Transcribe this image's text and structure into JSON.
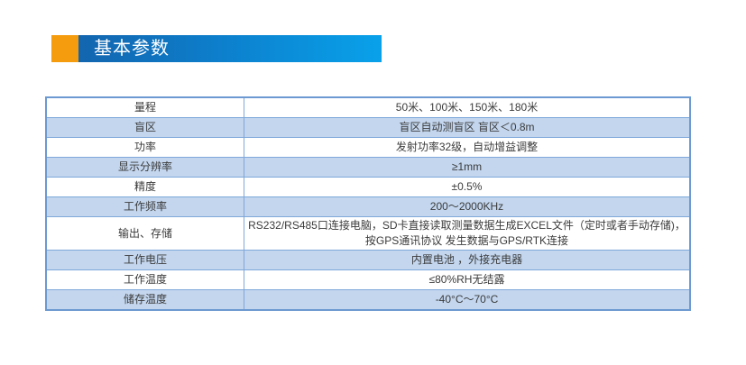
{
  "header": {
    "title": "基本参数"
  },
  "colors": {
    "accent_orange": "#f59b0e",
    "banner_blue_left": "#1365af",
    "banner_blue_right": "#09a1ea",
    "row_alt_blue": "#c3d6ee",
    "table_border": "#7ea8da",
    "text": "#3b3b3b"
  },
  "table": {
    "rows": [
      {
        "label": "量程",
        "value_lines": [
          "50米、100米、150米、180米"
        ]
      },
      {
        "label": "盲区",
        "value_lines": [
          "盲区自动测盲区 盲区＜0.8m"
        ]
      },
      {
        "label": "功率",
        "value_lines": [
          "发射功率32级，自动增益调整"
        ]
      },
      {
        "label": "显示分辨率",
        "value_lines": [
          "≥1mm"
        ]
      },
      {
        "label": "精度",
        "value_lines": [
          "±0.5%"
        ]
      },
      {
        "label": "工作频率",
        "value_lines": [
          "200～2000KHz"
        ]
      },
      {
        "label": "输出、存储",
        "value_lines": [
          "RS232/RS485口连接电脑，SD卡直接读取测量数据生成EXCEL文件（定时或者手动存储)，",
          "按GPS通讯协议 发生数据与GPS/RTK连接"
        ]
      },
      {
        "label": "工作电压",
        "value_lines": [
          "内置电池 ，外接充电器"
        ]
      },
      {
        "label": "工作温度",
        "value_lines": [
          "≤80%RH无结露"
        ]
      },
      {
        "label": "储存温度",
        "value_lines": [
          "-40°C～70°C"
        ]
      }
    ]
  }
}
